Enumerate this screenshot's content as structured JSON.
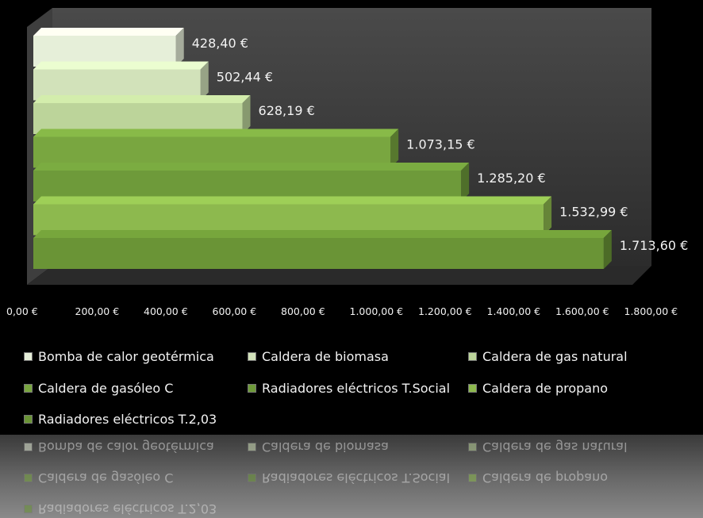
{
  "colors": {
    "background": "#000000",
    "plot_face": "#383838",
    "bar_light_1": "#e6efd9",
    "bar_light_2": "#d2e2ba",
    "bar_light_3": "#bcd49a",
    "bar_green_dark": "#6e9a3a",
    "bar_green_light": "#8db94e",
    "text": "#f2f2f2"
  },
  "chart_data": {
    "type": "bar",
    "orientation": "horizontal",
    "style": "3d",
    "title": "",
    "xlabel": "",
    "ylabel": "",
    "xlim": [
      0,
      1800
    ],
    "x_ticks": [
      0,
      200,
      400,
      600,
      800,
      1000,
      1200,
      1400,
      1600,
      1800
    ],
    "x_tick_labels": [
      "0,00 €",
      "200,00 €",
      "400,00 €",
      "600,00 €",
      "800,00 €",
      "1.000,00 €",
      "1.200,00 €",
      "1.400,00 €",
      "1.600,00 €",
      "1.800,00 €"
    ],
    "grid": false,
    "legend_position": "bottom",
    "series": [
      {
        "name": "Bomba de calor geotérmica",
        "value": 428.4,
        "label": "428,40 €",
        "color": "#e6efd9"
      },
      {
        "name": "Caldera de biomasa",
        "value": 502.44,
        "label": "502,44 €",
        "color": "#d2e2ba"
      },
      {
        "name": "Caldera de gas natural",
        "value": 628.19,
        "label": "628,19 €",
        "color": "#bcd49a"
      },
      {
        "name": "Caldera de gasóleo C",
        "value": 1073.15,
        "label": "1.073,15 €",
        "color": "#79a640"
      },
      {
        "name": "Radiadores eléctricos T.Social",
        "value": 1285.2,
        "label": "1.285,20 €",
        "color": "#6e9a3a"
      },
      {
        "name": "Caldera de propano",
        "value": 1532.99,
        "label": "1.532,99 €",
        "color": "#8db94e"
      },
      {
        "name": "Radiadores eléctricos T.2,03",
        "value": 1713.6,
        "label": "1.713,60 €",
        "color": "#6a9436"
      }
    ]
  }
}
